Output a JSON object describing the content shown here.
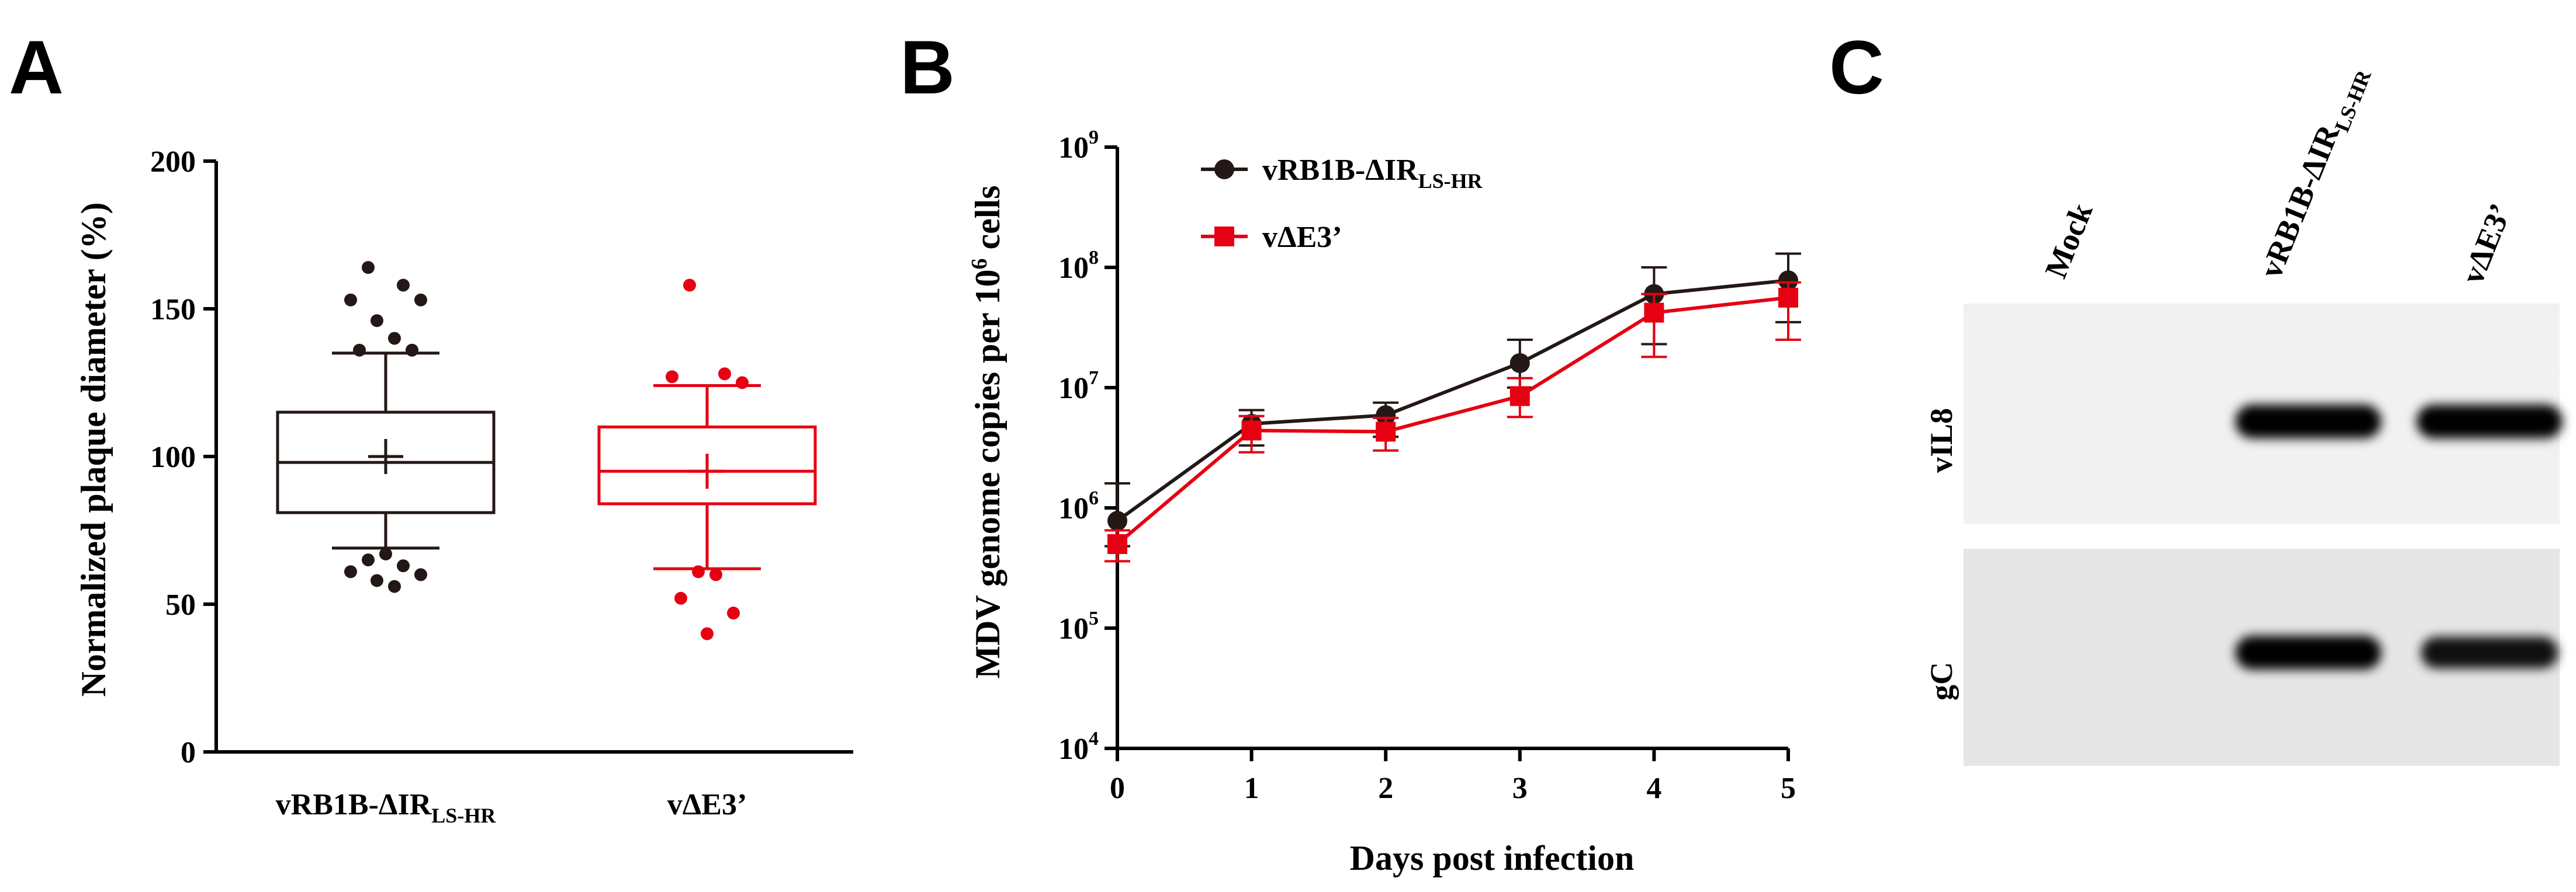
{
  "panels": {
    "A": {
      "letter": "A"
    },
    "B": {
      "letter": "B"
    },
    "C": {
      "letter": "C"
    }
  },
  "chart_data": [
    {
      "type": "boxplot",
      "panel": "A",
      "ylabel": "Normalized plaque diameter (%)",
      "ylim": [
        0,
        200
      ],
      "yticks": [
        "0",
        "50",
        "100",
        "150",
        "200"
      ],
      "groups": [
        {
          "label": "vRB1B-ΔIR",
          "label_sub": "LS-HR",
          "color": "#231815",
          "q1": 81,
          "median": 98,
          "q3": 115,
          "mean": 100,
          "whisker_low": 69,
          "whisker_high": 135,
          "outliers": [
            164,
            158,
            153,
            153,
            146,
            140,
            136,
            136,
            67,
            65,
            63,
            61,
            60,
            58,
            56
          ]
        },
        {
          "label": "vΔE3’",
          "label_sub": "",
          "color": "#e50012",
          "q1": 84,
          "median": 95,
          "q3": 110,
          "mean": 95,
          "whisker_low": 62,
          "whisker_high": 124,
          "outliers": [
            158,
            128,
            127,
            125,
            61,
            60,
            52,
            47,
            40
          ]
        }
      ]
    },
    {
      "type": "line",
      "panel": "B",
      "xlabel": "Days post infection",
      "ylabel_main": "MDV genome copies per 10",
      "ylabel_sup": "6",
      "ylabel_end": " cells",
      "yscale": "log",
      "ylim_exp": [
        4,
        9
      ],
      "yticks": [
        {
          "base": "10",
          "exp": "4"
        },
        {
          "base": "10",
          "exp": "5"
        },
        {
          "base": "10",
          "exp": "6"
        },
        {
          "base": "10",
          "exp": "7"
        },
        {
          "base": "10",
          "exp": "8"
        },
        {
          "base": "10",
          "exp": "9"
        }
      ],
      "x": [
        0,
        1,
        2,
        3,
        4,
        5
      ],
      "xticks": [
        "0",
        "1",
        "2",
        "3",
        "4",
        "5"
      ],
      "series": [
        {
          "name": "vRB1B-ΔIR",
          "name_sub": "LS-HR",
          "color": "#231815",
          "marker": "circle",
          "values": [
            780000,
            5000000,
            5900000,
            16000000,
            60000000,
            78000000
          ],
          "err_low": [
            480000,
            3300000,
            3900000,
            10000000,
            23000000,
            35000000
          ],
          "err_high": [
            1600000,
            6500000,
            7500000,
            25000000,
            100000000,
            130000000
          ]
        },
        {
          "name": "vΔE3’",
          "name_sub": "",
          "color": "#e50012",
          "marker": "square",
          "values": [
            500000,
            4400000,
            4300000,
            8500000,
            42000000,
            56000000
          ],
          "err_low": [
            360000,
            2900000,
            3000000,
            5700000,
            18000000,
            25000000
          ],
          "err_high": [
            650000,
            5800000,
            5600000,
            12000000,
            60000000,
            75000000
          ]
        }
      ]
    }
  ],
  "western_blot": {
    "panel": "C",
    "lanes": [
      {
        "label": "Mock",
        "label_sub": ""
      },
      {
        "label": "vRB1B-ΔIR",
        "label_sub": "LS-HR"
      },
      {
        "label": "vΔE3’",
        "label_sub": ""
      }
    ],
    "rows": [
      {
        "label": "vIL8",
        "band_intensity": [
          0,
          1,
          1
        ]
      },
      {
        "label": "gC",
        "band_intensity": [
          0,
          1,
          0.85
        ]
      }
    ]
  }
}
